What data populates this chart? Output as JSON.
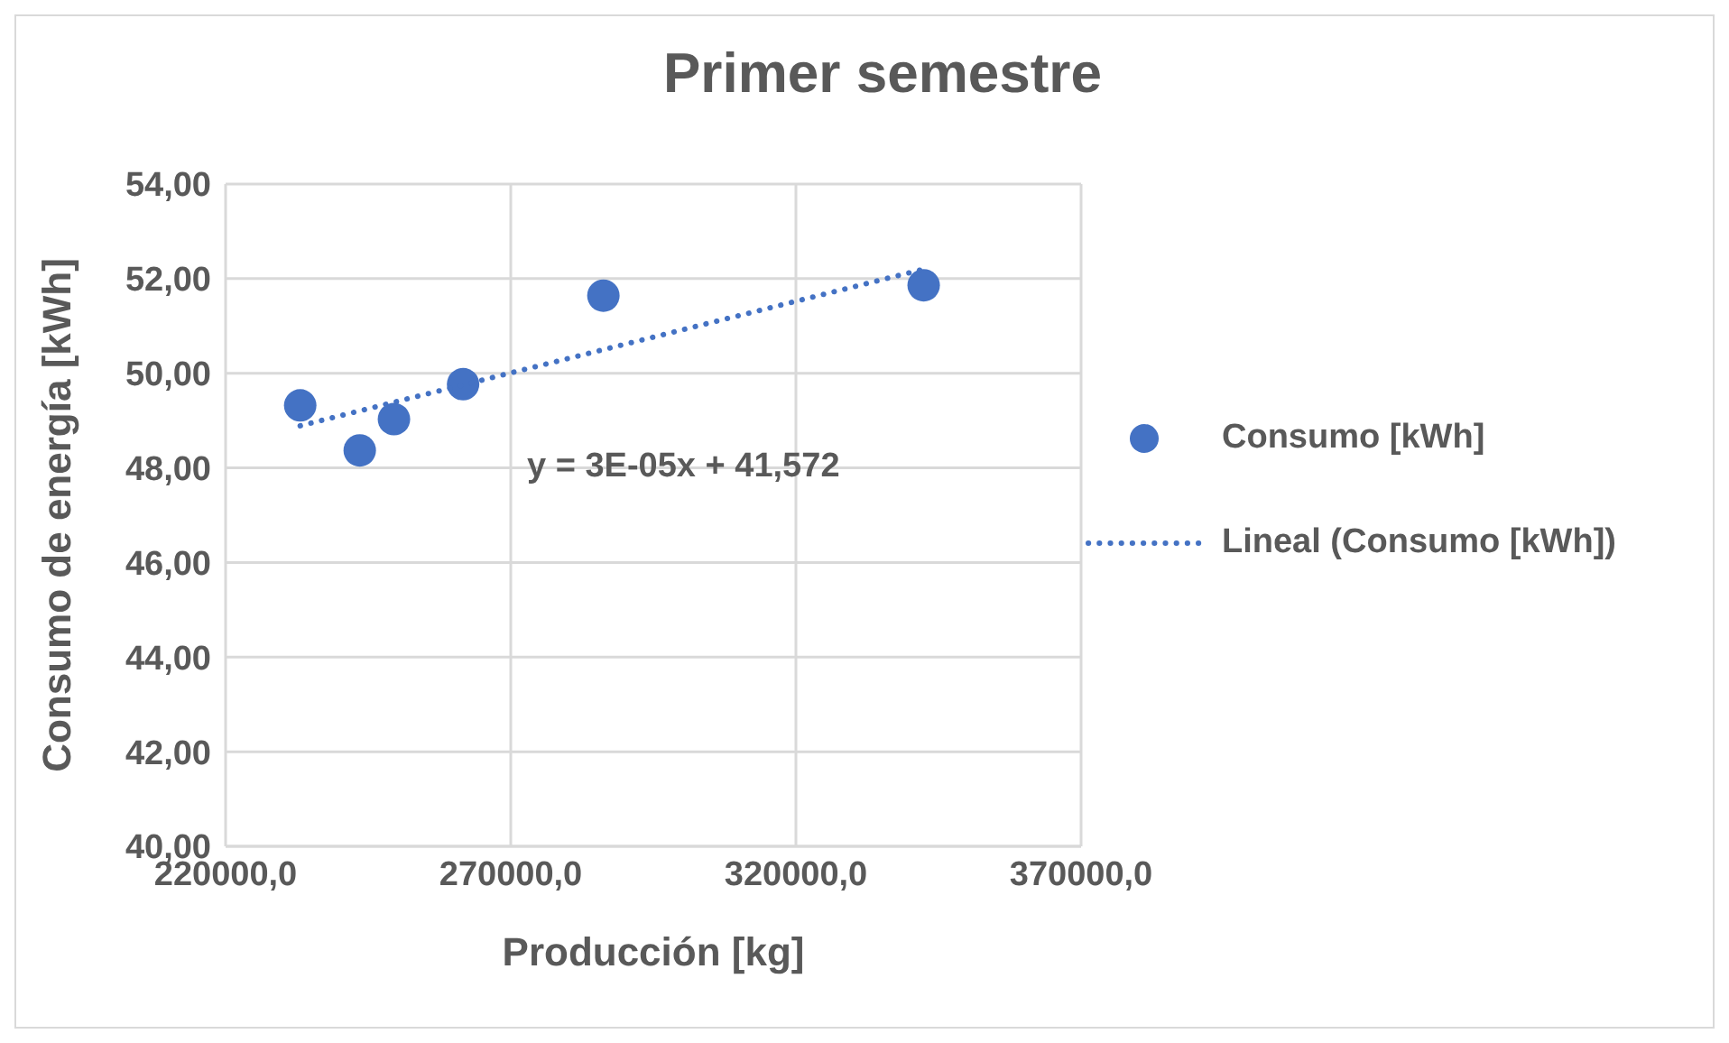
{
  "chart_data": {
    "type": "scatter",
    "title": "Primer semestre",
    "xlabel": "Producción [kg]",
    "ylabel": "Consumo de energía [kWh]",
    "series": [
      {
        "name": "Consumo [kWh]",
        "color": "#4472c4",
        "marker": "circle",
        "x": [
          233080,
          243520,
          249520,
          261640,
          286240,
          342400
        ],
        "values": [
          49.32,
          48.37,
          49.03,
          49.77,
          51.64,
          51.86
        ]
      },
      {
        "name": "Lineal (Consumo [kWh])",
        "type": "line",
        "color": "#4472c4",
        "marker": "none",
        "line_style": "dotted",
        "x": [
          233080,
          342400
        ],
        "values": [
          48.89,
          52.2
        ]
      }
    ],
    "xlim": [
      220000,
      370000
    ],
    "xticks": [
      {
        "value": 220000,
        "label": "220000,0"
      },
      {
        "value": 270000,
        "label": "270000,0"
      },
      {
        "value": 320000,
        "label": "320000,0"
      },
      {
        "value": 370000,
        "label": "370000,0"
      }
    ],
    "ylim": [
      40,
      54
    ],
    "yticks": [
      {
        "value": 40,
        "label": "40,00"
      },
      {
        "value": 42,
        "label": "42,00"
      },
      {
        "value": 44,
        "label": "44,00"
      },
      {
        "value": 46,
        "label": "46,00"
      },
      {
        "value": 48,
        "label": "48,00"
      },
      {
        "value": 50,
        "label": "50,00"
      },
      {
        "value": 52,
        "label": "52,00"
      },
      {
        "value": 54,
        "label": "54,00"
      }
    ],
    "annotations": [
      "y = 3E-05x + 41,572"
    ],
    "grid": true,
    "legend": "right"
  }
}
